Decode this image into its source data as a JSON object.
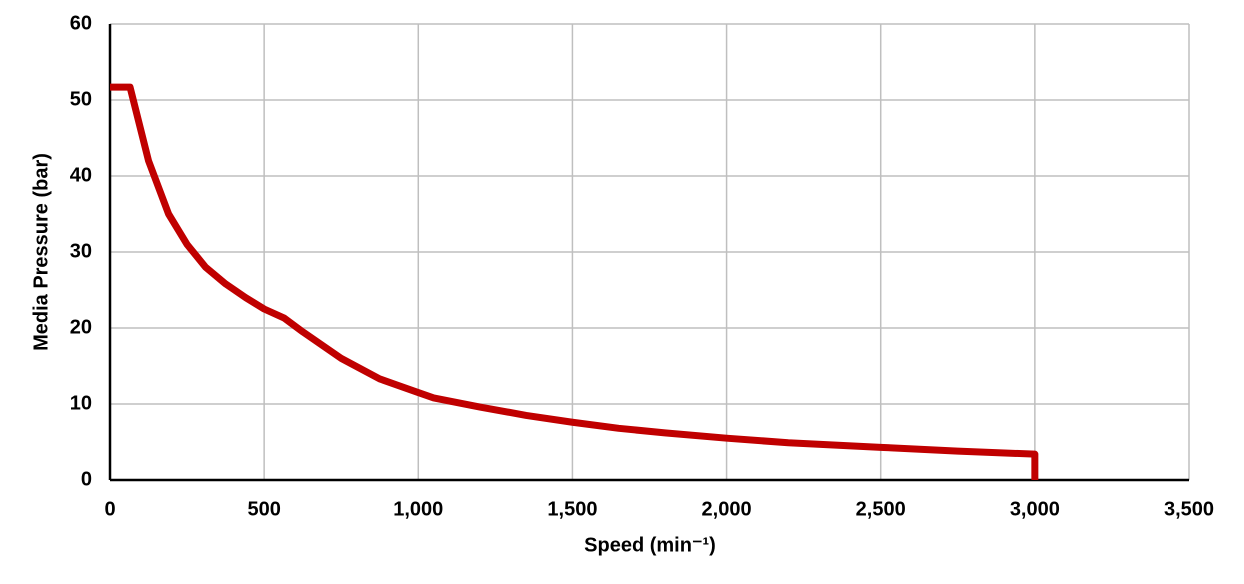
{
  "chart_data": {
    "type": "line",
    "xlabel": "Speed (min⁻¹)",
    "ylabel": "Media Pressure (bar)",
    "series": [
      {
        "name": "Media Pressure",
        "color": "#c00000",
        "x": [
          0,
          65,
          125,
          190,
          250,
          310,
          375,
          440,
          500,
          565,
          625,
          750,
          875,
          1000,
          1050,
          1200,
          1350,
          1500,
          1650,
          1800,
          2000,
          2200,
          2500,
          2750,
          3000,
          3000
        ],
        "values": [
          51.7,
          51.7,
          42,
          35,
          31,
          28,
          25.8,
          24,
          22.5,
          21.3,
          19.5,
          16,
          13.3,
          11.5,
          10.8,
          9.6,
          8.5,
          7.6,
          6.8,
          6.2,
          5.5,
          4.9,
          4.3,
          3.8,
          3.4,
          0
        ]
      }
    ],
    "xlim": [
      0,
      3500
    ],
    "xticks": [
      0,
      500,
      {
        "value": 1000,
        "label": "1,000"
      },
      {
        "value": 1500,
        "label": "1,500"
      },
      {
        "value": 2000,
        "label": "2,000"
      },
      {
        "value": 2500,
        "label": "2,500"
      },
      {
        "value": 3000,
        "label": "3,000"
      },
      {
        "value": 3500,
        "label": "3,500"
      }
    ],
    "ylim": [
      0,
      60
    ],
    "yticks": [
      0,
      10,
      20,
      30,
      40,
      50,
      60
    ],
    "grid": true
  }
}
